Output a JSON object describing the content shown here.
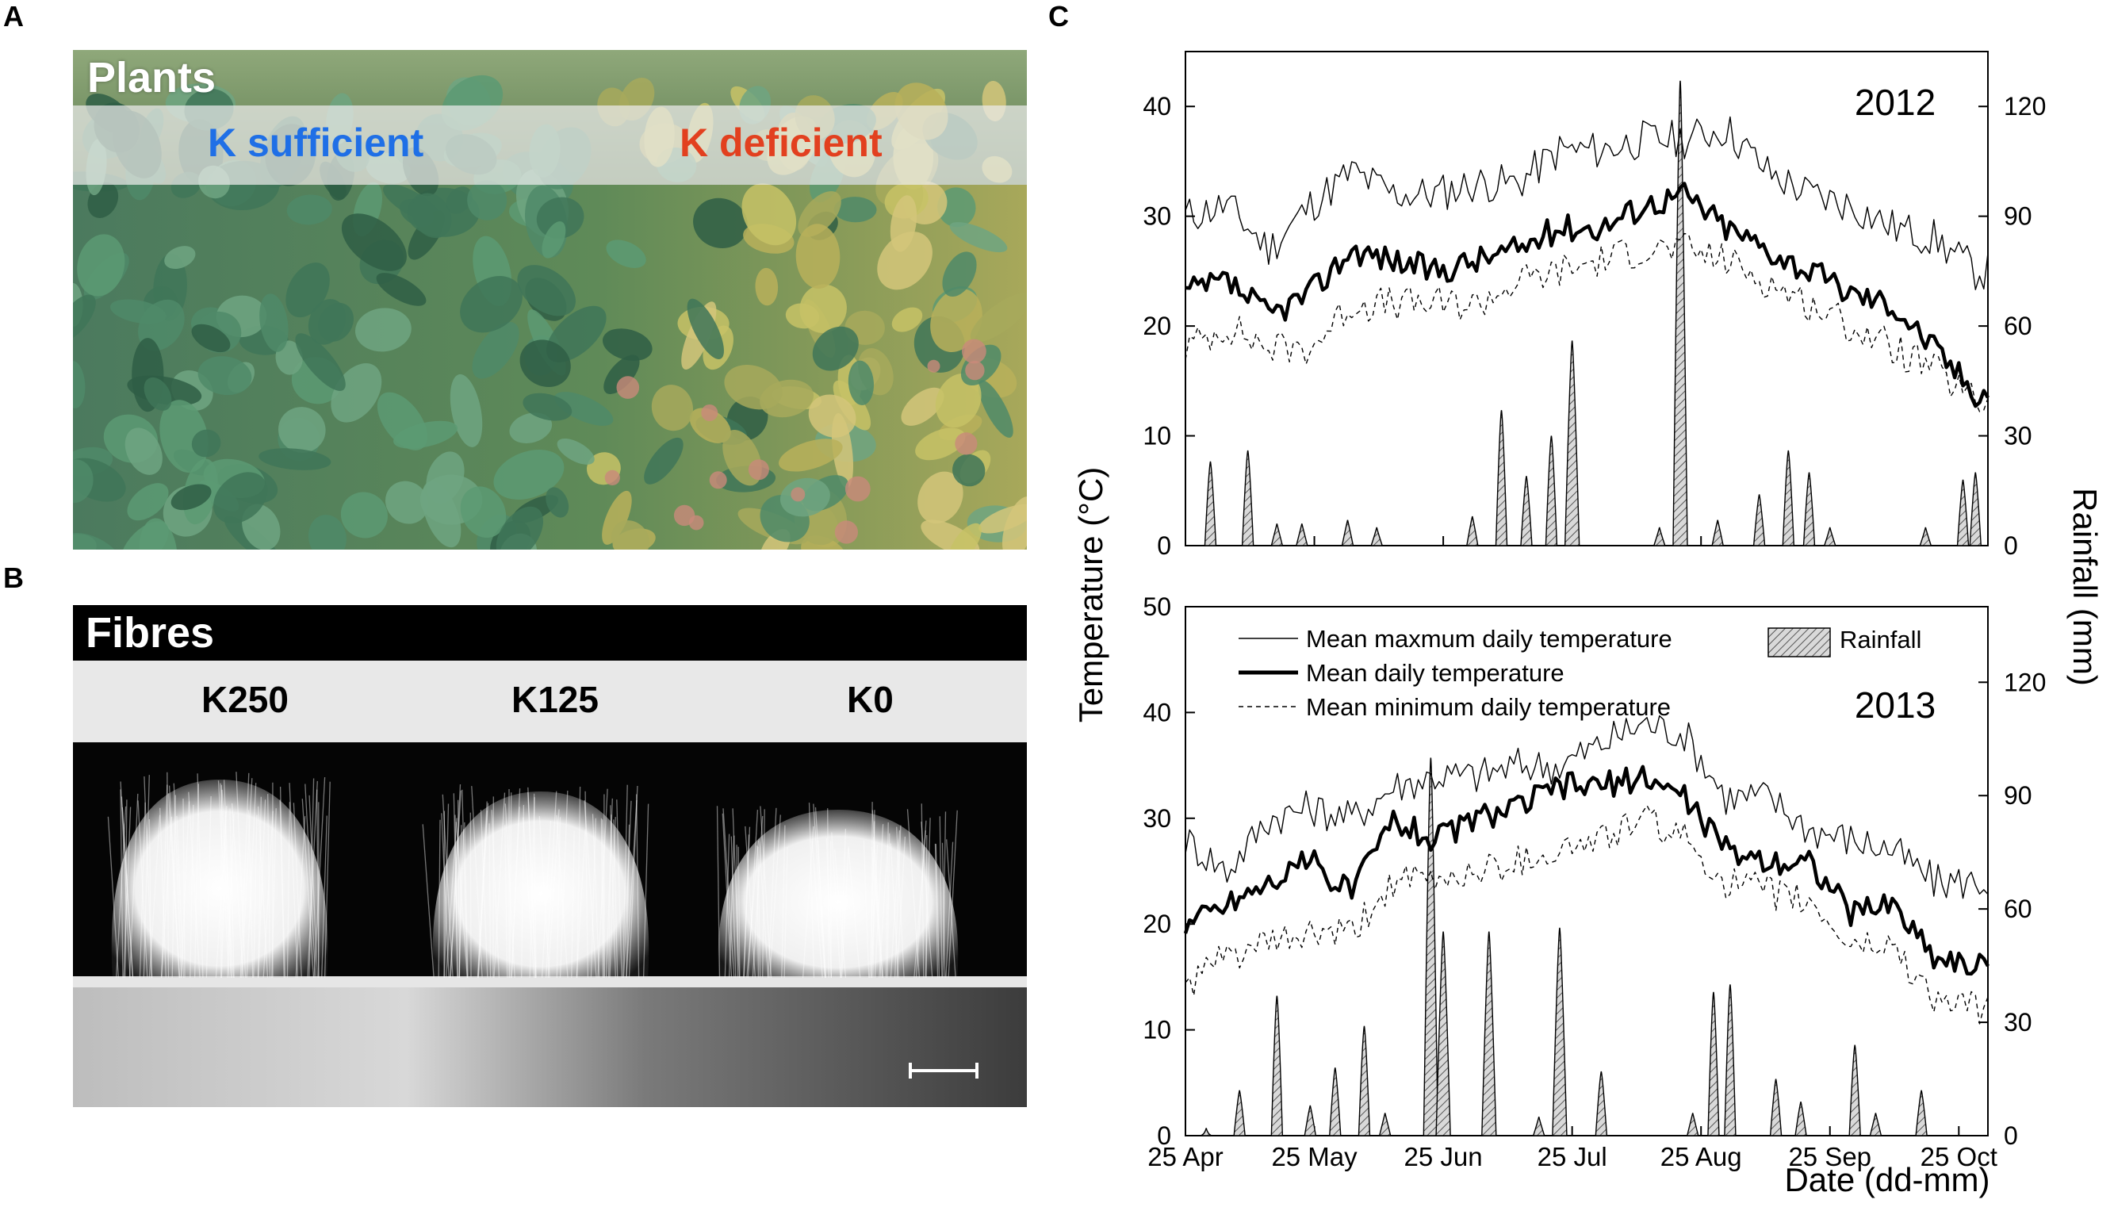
{
  "panels": {
    "a": "A",
    "b": "B",
    "c": "C"
  },
  "panel_a": {
    "title": "Plants",
    "left_label": "K sufficient",
    "right_label": "K deficient",
    "colors": {
      "left_label": "#1f6fe6",
      "right_label": "#e2401f"
    }
  },
  "panel_b": {
    "title": "Fibres",
    "labels": [
      "K250",
      "K125",
      "K0"
    ]
  },
  "chart_data": {
    "type": "line",
    "xlabel": "Date (dd-mm)",
    "ylabel_left": "Temperature (°C)",
    "ylabel_right": "Rainfall (mm)",
    "x_ticks": [
      "25 Apr",
      "25 May",
      "25 Jun",
      "25 Jul",
      "25 Aug",
      "25 Sep",
      "25 Oct"
    ],
    "legend": {
      "max": "Mean maxmum daily temperature",
      "mean": "Mean daily temperature",
      "min": "Mean minimum daily temperature",
      "rain": "Rainfall"
    },
    "legend_position": "top (2013 panel)",
    "subplots": [
      {
        "year": "2012",
        "ylim_temp": [
          0,
          45
        ],
        "ylim_rain": [
          0,
          135
        ],
        "yticks_temp": [
          0,
          10,
          20,
          30,
          40
        ],
        "yticks_rain": [
          0,
          30,
          60,
          90,
          120
        ],
        "days": [
          0,
          10,
          20,
          30,
          40,
          50,
          60,
          70,
          80,
          90,
          100,
          110,
          120,
          130,
          140,
          150,
          160,
          170,
          180,
          190
        ],
        "max_temp": [
          30,
          31,
          27,
          31,
          34,
          32,
          32,
          33,
          33,
          36,
          36,
          37,
          37,
          38,
          34,
          32,
          31,
          29,
          28,
          25
        ],
        "mean_temp": [
          23,
          24,
          21,
          23,
          27,
          26,
          25,
          26,
          27,
          29,
          29,
          31,
          32,
          29,
          27,
          25,
          23,
          22,
          18,
          14
        ],
        "min_temp": [
          18,
          20,
          18,
          18,
          22,
          22,
          22,
          22,
          24,
          25,
          26,
          27,
          27,
          26,
          24,
          22,
          20,
          18,
          16,
          13
        ],
        "rain_peaks": [
          {
            "day": 6,
            "mm": 23
          },
          {
            "day": 15,
            "mm": 26
          },
          {
            "day": 22,
            "mm": 6
          },
          {
            "day": 28,
            "mm": 6
          },
          {
            "day": 39,
            "mm": 7
          },
          {
            "day": 46,
            "mm": 5
          },
          {
            "day": 69,
            "mm": 8
          },
          {
            "day": 76,
            "mm": 37
          },
          {
            "day": 82,
            "mm": 19
          },
          {
            "day": 88,
            "mm": 30
          },
          {
            "day": 93,
            "mm": 56
          },
          {
            "day": 114,
            "mm": 5
          },
          {
            "day": 119,
            "mm": 127
          },
          {
            "day": 128,
            "mm": 7
          },
          {
            "day": 138,
            "mm": 14
          },
          {
            "day": 145,
            "mm": 26
          },
          {
            "day": 150,
            "mm": 20
          },
          {
            "day": 155,
            "mm": 5
          },
          {
            "day": 178,
            "mm": 5
          },
          {
            "day": 187,
            "mm": 18
          },
          {
            "day": 190,
            "mm": 20
          }
        ]
      },
      {
        "year": "2013",
        "ylim_temp": [
          0,
          50
        ],
        "ylim_rain": [
          0,
          140
        ],
        "yticks_temp": [
          0,
          10,
          20,
          30,
          40,
          50
        ],
        "yticks_rain": [
          0,
          30,
          60,
          90,
          120
        ],
        "days": [
          0,
          10,
          20,
          30,
          40,
          50,
          60,
          70,
          80,
          90,
          100,
          110,
          120,
          130,
          140,
          150,
          160,
          170,
          180,
          190
        ],
        "max_temp": [
          28,
          25,
          30,
          31,
          30,
          33,
          34,
          34,
          35,
          35,
          37,
          39,
          38,
          32,
          32,
          29,
          28,
          27,
          24,
          24
        ],
        "mean_temp": [
          20,
          22,
          24,
          26,
          23,
          30,
          28,
          30,
          31,
          33,
          33,
          34,
          32,
          27,
          26,
          26,
          21,
          22,
          17,
          16
        ],
        "min_temp": [
          14,
          17,
          18,
          19,
          19,
          24,
          24,
          25,
          26,
          27,
          28,
          30,
          28,
          24,
          23,
          22,
          18,
          18,
          13,
          12
        ],
        "rain_peaks": [
          {
            "day": 5,
            "mm": 2
          },
          {
            "day": 13,
            "mm": 12
          },
          {
            "day": 22,
            "mm": 37
          },
          {
            "day": 30,
            "mm": 8
          },
          {
            "day": 36,
            "mm": 18
          },
          {
            "day": 43,
            "mm": 29
          },
          {
            "day": 48,
            "mm": 6
          },
          {
            "day": 59,
            "mm": 100
          },
          {
            "day": 62,
            "mm": 54
          },
          {
            "day": 73,
            "mm": 54
          },
          {
            "day": 85,
            "mm": 5
          },
          {
            "day": 90,
            "mm": 55
          },
          {
            "day": 100,
            "mm": 17
          },
          {
            "day": 122,
            "mm": 6
          },
          {
            "day": 127,
            "mm": 38
          },
          {
            "day": 131,
            "mm": 40
          },
          {
            "day": 142,
            "mm": 15
          },
          {
            "day": 148,
            "mm": 9
          },
          {
            "day": 161,
            "mm": 24
          },
          {
            "day": 166,
            "mm": 6
          },
          {
            "day": 177,
            "mm": 12
          }
        ]
      }
    ]
  }
}
